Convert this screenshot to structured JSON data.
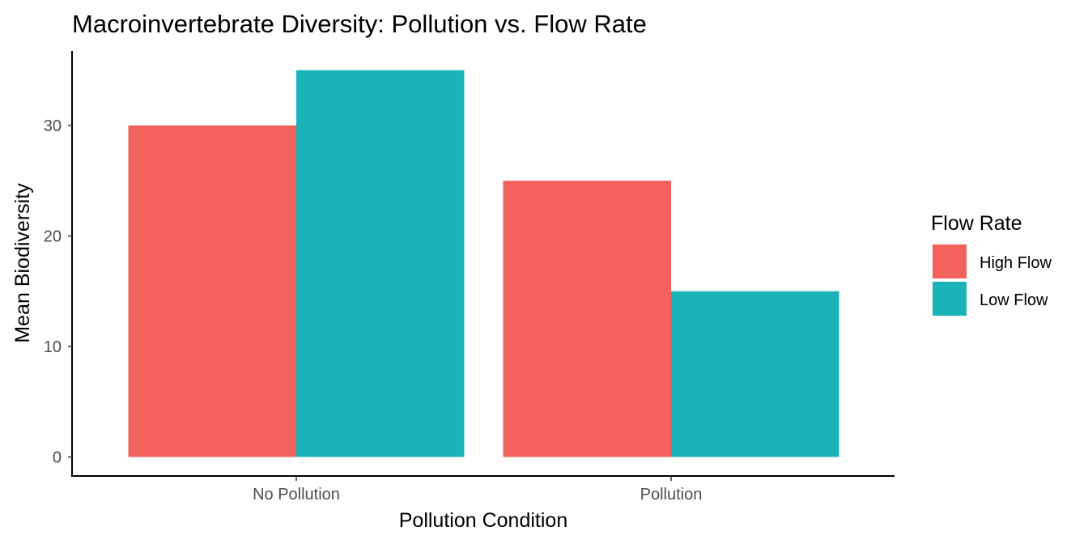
{
  "chart_data": {
    "type": "bar",
    "title": "Macroinvertebrate Diversity: Pollution vs. Flow Rate",
    "xlabel": "Pollution Condition",
    "ylabel": "Mean Biodiversity",
    "categories": [
      "No Pollution",
      "Pollution"
    ],
    "series": [
      {
        "name": "High Flow",
        "values": [
          30,
          25
        ],
        "color": "#F2615C"
      },
      {
        "name": "Low Flow",
        "values": [
          35,
          15
        ],
        "color": "#1AB4B8"
      }
    ],
    "ylim": [
      0,
      36.75
    ],
    "yticks": [
      0,
      10,
      20,
      30
    ],
    "ytick_labels": [
      "0",
      "10",
      "20",
      "30"
    ],
    "legend": {
      "title": "Flow Rate",
      "position": "right"
    },
    "grid": false
  }
}
